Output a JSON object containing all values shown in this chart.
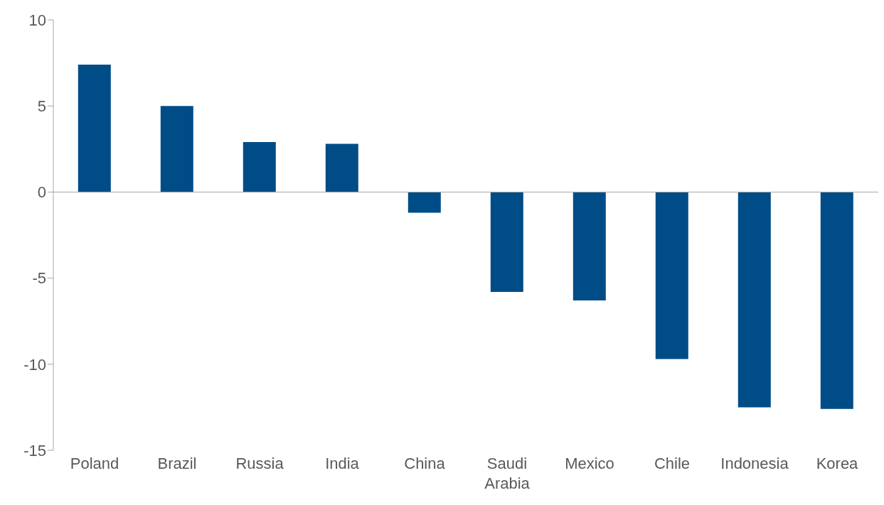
{
  "chart_data": {
    "type": "bar",
    "categories": [
      "Poland",
      "Brazil",
      "Russia",
      "India",
      "China",
      "Saudi Arabia",
      "Mexico",
      "Chile",
      "Indonesia",
      "Korea"
    ],
    "values": [
      7.4,
      5.0,
      2.9,
      2.8,
      -1.2,
      -5.8,
      -6.3,
      -9.7,
      -12.5,
      -12.6
    ],
    "color": "#004c87",
    "ylim": [
      -15,
      10
    ],
    "yticks": [
      -15,
      -10,
      -5,
      0,
      5,
      10
    ]
  }
}
